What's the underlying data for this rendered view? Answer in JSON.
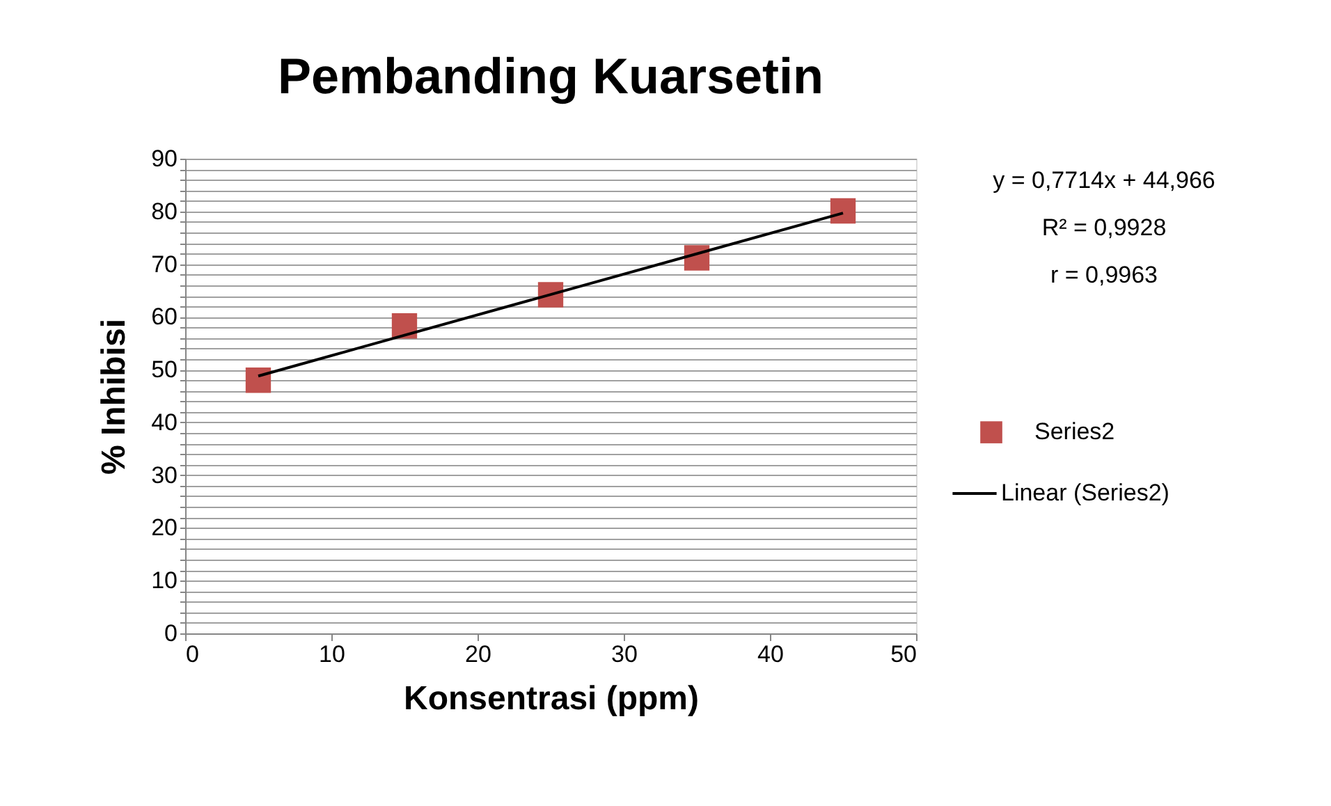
{
  "chart_data": {
    "type": "scatter",
    "title": "Pembanding Kuarsetin",
    "xlabel": "Konsentrasi (ppm)",
    "ylabel": "% Inhibisi",
    "x": [
      5,
      15,
      25,
      35,
      45
    ],
    "series": [
      {
        "name": "Series2",
        "color": "#c0504d",
        "marker": "square",
        "values": [
          48.0,
          58.3,
          64.2,
          71.2,
          80.1
        ]
      },
      {
        "name": "Linear (Series2)",
        "type": "line",
        "color": "#000000",
        "line_style": "solid",
        "marker": "none",
        "x": [
          5,
          45
        ],
        "values": [
          48.8,
          79.7
        ]
      }
    ],
    "annotations": [
      "y = 0,7714x + 44,966",
      "R² = 0,9928",
      "r = 0,9963"
    ],
    "xlim": [
      0,
      50
    ],
    "xticks": [
      0,
      10,
      20,
      30,
      40,
      50
    ],
    "ylim": [
      0,
      90
    ],
    "yticks": [
      0,
      {
        "value": 2,
        "label": null
      },
      {
        "value": 4,
        "label": null
      },
      {
        "value": 6,
        "label": null
      },
      {
        "value": 8,
        "label": null
      },
      10,
      {
        "value": 12,
        "label": null
      },
      {
        "value": 14,
        "label": null
      },
      {
        "value": 16,
        "label": null
      },
      {
        "value": 18,
        "label": null
      },
      20,
      {
        "value": 22,
        "label": null
      },
      {
        "value": 24,
        "label": null
      },
      {
        "value": 26,
        "label": null
      },
      {
        "value": 28,
        "label": null
      },
      30,
      {
        "value": 32,
        "label": null
      },
      {
        "value": 34,
        "label": null
      },
      {
        "value": 36,
        "label": null
      },
      {
        "value": 38,
        "label": null
      },
      40,
      {
        "value": 42,
        "label": null
      },
      {
        "value": 44,
        "label": null
      },
      {
        "value": 46,
        "label": null
      },
      {
        "value": 48,
        "label": null
      },
      50,
      {
        "value": 52,
        "label": null
      },
      {
        "value": 54,
        "label": null
      },
      {
        "value": 56,
        "label": null
      },
      {
        "value": 58,
        "label": null
      },
      60,
      {
        "value": 62,
        "label": null
      },
      {
        "value": 64,
        "label": null
      },
      {
        "value": 66,
        "label": null
      },
      {
        "value": 68,
        "label": null
      },
      70,
      {
        "value": 72,
        "label": null
      },
      {
        "value": 74,
        "label": null
      },
      {
        "value": 76,
        "label": null
      },
      {
        "value": 78,
        "label": null
      },
      80,
      {
        "value": 82,
        "label": null
      },
      {
        "value": 84,
        "label": null
      },
      {
        "value": 86,
        "label": null
      },
      {
        "value": 88,
        "label": null
      },
      90
    ],
    "grid": "y",
    "legend": "right"
  }
}
